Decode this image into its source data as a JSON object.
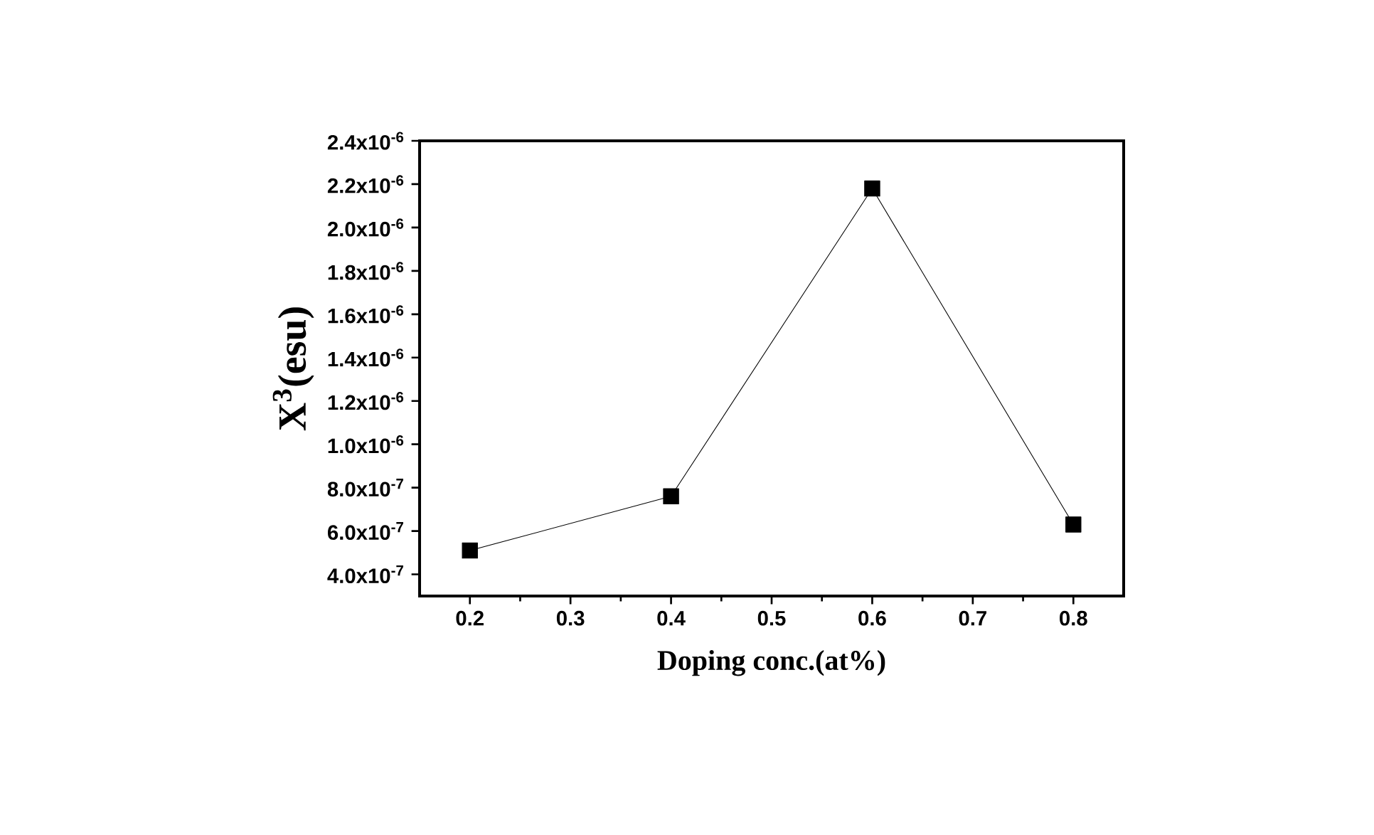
{
  "chart_data": {
    "type": "line",
    "xlabel": "Doping conc.(at%)",
    "ylabel": "X$^{3}$(esu)",
    "x": [
      0.2,
      0.4,
      0.6,
      0.8
    ],
    "series": [
      {
        "color": "#000000",
        "values": [
          5.1e-07,
          7.6e-07,
          2.18e-06,
          6.3e-07
        ]
      }
    ],
    "marker": "square",
    "line_style": "solid",
    "xlim": [
      0.15,
      0.85
    ],
    "xticks": [
      0.2,
      0.3,
      0.4,
      0.5,
      0.6,
      0.7,
      0.8
    ],
    "ylim": [
      3e-07,
      2.4e-06
    ],
    "yticks": [
      {
        "value": 4e-07,
        "label": "4.0x10$^{-7}$"
      },
      {
        "value": 6e-07,
        "label": "6.0x10$^{-7}$"
      },
      {
        "value": 8e-07,
        "label": "8.0x10$^{-7}$"
      },
      {
        "value": 1e-06,
        "label": "1.0x10$^{-6}$"
      },
      {
        "value": 1.2e-06,
        "label": "1.2x10$^{-6}$"
      },
      {
        "value": 1.4e-06,
        "label": "1.4x10$^{-6}$"
      },
      {
        "value": 1.6e-06,
        "label": "1.6x10$^{-6}$"
      },
      {
        "value": 1.8e-06,
        "label": "1.8x10$^{-6}$"
      },
      {
        "value": 2e-06,
        "label": "2.0x10$^{-6}$"
      },
      {
        "value": 2.2e-06,
        "label": "2.2x10$^{-6}$"
      },
      {
        "value": 2.4e-06,
        "label": "2.4x10$^{-6}$"
      }
    ],
    "grid": false
  }
}
